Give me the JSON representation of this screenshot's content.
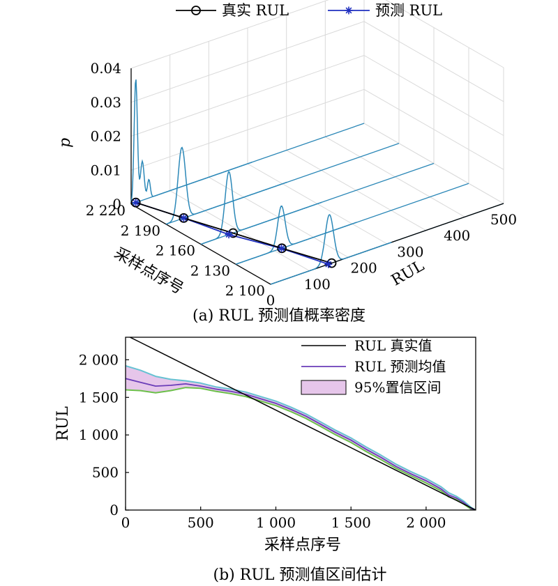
{
  "chart_data": [
    {
      "type": "line",
      "subtype": "3d-density-waterfall",
      "caption": "(a) RUL 预测值概率密度",
      "xlabel": "RUL",
      "ylabel": "采样点序号",
      "zlabel": "p",
      "x_ticks": [
        "0",
        "100",
        "200",
        "300",
        "400",
        "500"
      ],
      "y_ticks": [
        "2 100",
        "2 130",
        "2 160",
        "2 190",
        "2 220"
      ],
      "z_ticks": [
        "0",
        "0.01",
        "0.02",
        "0.03",
        "0.04"
      ],
      "xlim": [
        0,
        500
      ],
      "ylim": [
        2100,
        2220
      ],
      "zlim": [
        0,
        0.04
      ],
      "legend": {
        "position": "top",
        "entries": [
          "真实 RUL",
          "预测 RUL"
        ]
      },
      "colors": {
        "true_rul": "#000000",
        "pred_rul": "#1f2fbf",
        "density": "#2b88b8"
      },
      "series": [
        {
          "name": "真实 RUL",
          "marker": "circle",
          "points": [
            {
              "sample": 2220,
              "rul": 10
            },
            {
              "sample": 2190,
              "rul": 38
            },
            {
              "sample": 2160,
              "rul": 69
            },
            {
              "sample": 2130,
              "rul": 99
            },
            {
              "sample": 2100,
              "rul": 131
            }
          ]
        },
        {
          "name": "预测 RUL",
          "marker": "asterisk",
          "points": [
            {
              "sample": 2220,
              "rul": 10
            },
            {
              "sample": 2190,
              "rul": 38
            },
            {
              "sample": 2160,
              "rul": 60
            },
            {
              "sample": 2130,
              "rul": 98
            },
            {
              "sample": 2100,
              "rul": 124
            }
          ]
        }
      ],
      "densities": [
        {
          "sample": 2220,
          "peaks": [
            {
              "center": 10,
              "width": 3.5,
              "height": 0.0365
            },
            {
              "center": 24,
              "width": 4,
              "height": 0.0115
            },
            {
              "center": 38,
              "width": 3,
              "height": 0.0055
            }
          ]
        },
        {
          "sample": 2190,
          "peaks": [
            {
              "center": 34,
              "width": 8,
              "height": 0.021
            }
          ]
        },
        {
          "sample": 2160,
          "peaks": [
            {
              "center": 60,
              "width": 8,
              "height": 0.0185
            }
          ]
        },
        {
          "sample": 2130,
          "peaks": [
            {
              "center": 98,
              "width": 8,
              "height": 0.0125
            }
          ]
        },
        {
          "sample": 2100,
          "peaks": [
            {
              "center": 126,
              "width": 9,
              "height": 0.0145
            }
          ]
        }
      ]
    },
    {
      "type": "line",
      "caption": "(b) RUL 预测值区间估计",
      "xlabel": "采样点序号",
      "ylabel": "RUL",
      "xlim": [
        0,
        2330
      ],
      "ylim": [
        0,
        2300
      ],
      "x_ticks": [
        "0",
        "500",
        "1 000",
        "1 500",
        "2 000"
      ],
      "y_ticks": [
        "0",
        "500",
        "1 000",
        "1 500",
        "2 000"
      ],
      "legend": {
        "position": "top-right",
        "entries": [
          "RUL 真实值",
          "RUL 预测均值",
          "95%置信区间"
        ]
      },
      "colors": {
        "true": "#000000",
        "mean": "#6a3cb8",
        "upper": "#66c2d2",
        "lower": "#6cc04a",
        "band": "#e6c6ea"
      },
      "x": [
        0,
        100,
        200,
        300,
        400,
        500,
        600,
        700,
        800,
        900,
        1000,
        1100,
        1200,
        1300,
        1400,
        1500,
        1600,
        1700,
        1800,
        1900,
        2000,
        2100,
        2150,
        2200,
        2250,
        2300,
        2330
      ],
      "series": [
        {
          "name": "RUL 真实值",
          "values": [
            2330,
            2230,
            2130,
            2030,
            1930,
            1830,
            1730,
            1630,
            1530,
            1430,
            1330,
            1230,
            1130,
            1030,
            930,
            830,
            730,
            630,
            530,
            430,
            330,
            230,
            180,
            130,
            80,
            30,
            0
          ]
        },
        {
          "name": "RUL 预测均值",
          "values": [
            1750,
            1700,
            1650,
            1660,
            1680,
            1650,
            1610,
            1580,
            1540,
            1480,
            1420,
            1340,
            1250,
            1140,
            1030,
            930,
            810,
            700,
            580,
            480,
            390,
            280,
            200,
            160,
            100,
            20,
            0
          ]
        },
        {
          "name": "upper",
          "values": [
            1920,
            1860,
            1780,
            1740,
            1720,
            1690,
            1640,
            1610,
            1570,
            1510,
            1450,
            1370,
            1280,
            1170,
            1060,
            960,
            840,
            730,
            610,
            510,
            420,
            310,
            230,
            185,
            120,
            35,
            0
          ]
        },
        {
          "name": "lower",
          "values": [
            1600,
            1590,
            1560,
            1590,
            1630,
            1620,
            1580,
            1550,
            1510,
            1450,
            1390,
            1310,
            1220,
            1110,
            1000,
            900,
            780,
            670,
            555,
            455,
            360,
            255,
            175,
            140,
            80,
            10,
            0
          ]
        }
      ]
    }
  ]
}
